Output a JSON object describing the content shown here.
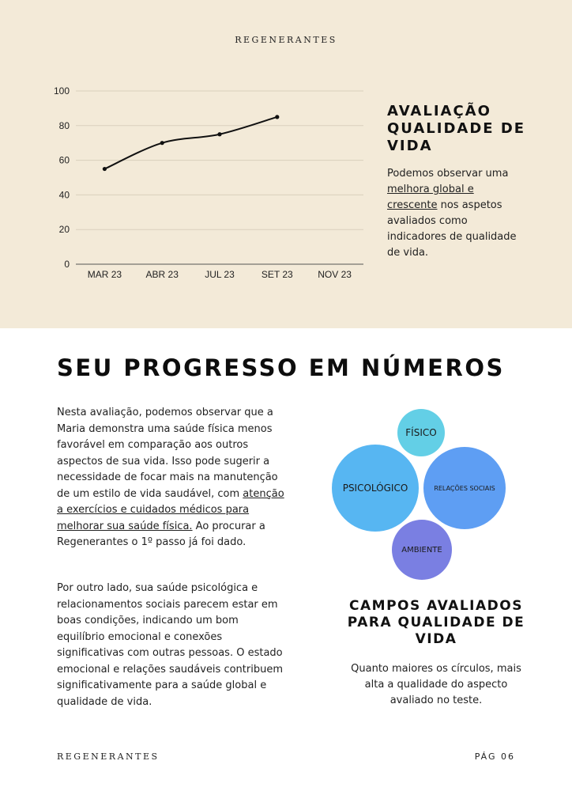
{
  "header": {
    "brand": "REGENERANTES"
  },
  "chart_data": {
    "type": "line",
    "categories": [
      "MAR 23",
      "ABR 23",
      "JUL 23",
      "SET 23",
      "NOV 23"
    ],
    "series": [
      {
        "values": [
          55,
          70,
          75,
          85,
          null
        ]
      }
    ],
    "y_ticks": [
      "0",
      "20",
      "40",
      "60",
      "80",
      "100"
    ],
    "ylim": [
      0,
      100
    ],
    "grid": true,
    "line_color": "#111111",
    "grid_color": "#d9d0bd"
  },
  "evaluation": {
    "title": "AVALIAÇÃO QUALIDADE DE VIDA",
    "text_before": " Podemos observar uma ",
    "text_highlight": "melhora global e crescente",
    "text_after": " nos aspetos avaliados como indicadores de qualidade de vida."
  },
  "progress": {
    "heading": "SEU PROGRESSO EM NÚMEROS",
    "p1_before": "Nesta avaliação, podemos observar que a Maria demonstra uma saúde física menos favorável em comparação aos outros aspectos de sua vida. Isso pode sugerir a necessidade de focar mais na manutenção de um estilo de vida saudável, com ",
    "p1_highlight": "atenção a exercícios e cuidados médicos para melhorar sua saúde física.",
    "p1_after": " Ao procurar a Regenerantes o 1º passo já foi dado.",
    "p2": "Por outro lado, sua saúde psicológica e relacionamentos sociais parecem estar em boas condições, indicando um bom equilíbrio emocional e conexões significativas com outras pessoas. O estado emocional e relações saudáveis contribuem significativamente para a saúde global e qualidade de vida."
  },
  "fields": {
    "bubbles": [
      {
        "label": "FÍSICO",
        "color": "#63cfe6"
      },
      {
        "label": "PSICOLÓGICO",
        "color": "#57b6f2"
      },
      {
        "label": "RELAÇÕES SOCIAIS",
        "color": "#5e9ef3"
      },
      {
        "label": "AMBIENTE",
        "color": "#7a7fe2"
      }
    ],
    "title": "CAMPOS AVALIADOS PARA QUALIDADE DE VIDA",
    "text": "Quanto maiores os círculos, mais alta a qualidade do aspecto avaliado no teste."
  },
  "footer": {
    "brand": "REGENERANTES",
    "page": "PÁG 06"
  }
}
